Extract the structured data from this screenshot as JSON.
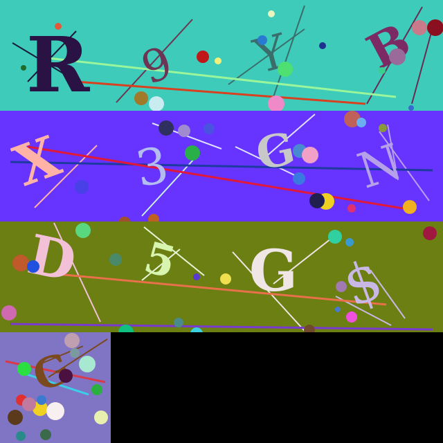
{
  "captchas": [
    {
      "background": "#3ecbb9",
      "chars": [
        {
          "text": "R",
          "color": "#2a1245"
        },
        {
          "text": "9",
          "color": "#6b3553"
        },
        {
          "text": "Y",
          "color": "#3a6e6b"
        },
        {
          "text": "B",
          "color": "#7b2a63"
        }
      ]
    },
    {
      "background": "#6633ff",
      "chars": [
        {
          "text": "X",
          "color": "#ffb3a6"
        },
        {
          "text": "3",
          "color": "#b3bdf0"
        },
        {
          "text": "G",
          "color": "#c8c8c8"
        },
        {
          "text": "N",
          "color": "#b7a0ea"
        }
      ]
    },
    {
      "background": "#6b7f12",
      "chars": [
        {
          "text": "D",
          "color": "#f2c1d8"
        },
        {
          "text": "5",
          "color": "#d8f5b0"
        },
        {
          "text": "G",
          "color": "#f0e6e6"
        },
        {
          "text": "$",
          "color": "#c9b8e6"
        }
      ]
    },
    {
      "background": "#8075c5",
      "chars": [
        {
          "text": "G",
          "color": "#7a4a1e"
        }
      ]
    }
  ]
}
